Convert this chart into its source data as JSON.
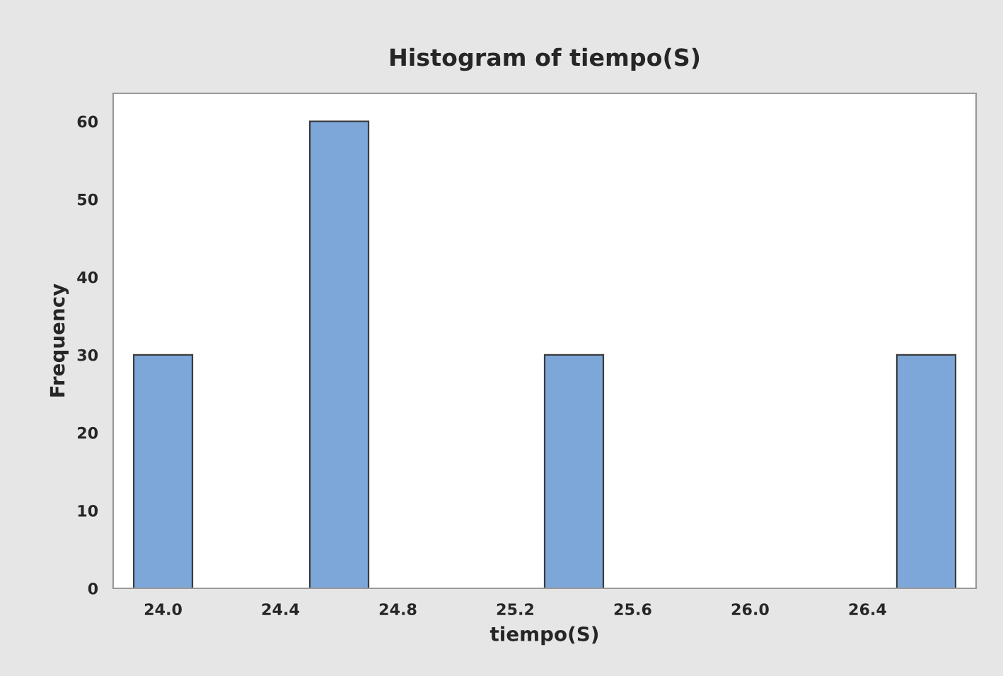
{
  "chart_data": {
    "type": "histogram",
    "title": "Histogram of tiempo(S)",
    "xlabel": "tiempo(S)",
    "ylabel": "Frequency",
    "bins": [
      23.9,
      24.1,
      24.3,
      24.5,
      24.7,
      24.9,
      25.1,
      25.3,
      25.5,
      25.7,
      25.9,
      26.1,
      26.3,
      26.5,
      26.7
    ],
    "values": [
      30,
      0,
      0,
      60,
      0,
      0,
      0,
      30,
      0,
      0,
      0,
      0,
      0,
      30
    ],
    "color": "#7da7d9",
    "xlim": [
      23.83,
      26.77
    ],
    "xticks": [
      {
        "value": 24.0,
        "label": "24.0"
      },
      24.4,
      24.8,
      25.2,
      25.6,
      {
        "value": 26.0,
        "label": "26.0"
      },
      26.4
    ],
    "ylim": [
      0,
      63.6
    ],
    "yticks": [
      0,
      10,
      20,
      30,
      40,
      50,
      60
    ],
    "grid": false,
    "legend": false
  }
}
